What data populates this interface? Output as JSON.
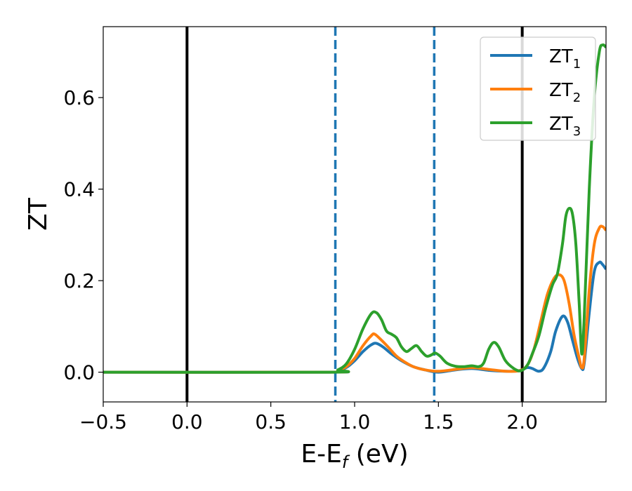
{
  "chart_data": {
    "type": "line",
    "xlabel": {
      "main": "E-E",
      "sub": "f",
      "unit": " (eV)"
    },
    "ylabel": "ZT",
    "xlim": [
      -0.5,
      2.5
    ],
    "ylim": [
      -0.065,
      0.755
    ],
    "x_ticks": [
      -0.5,
      0.0,
      0.5,
      1.0,
      1.5,
      2.0
    ],
    "x_tick_labels": [
      "−0.5",
      "0.0",
      "0.5",
      "1.0",
      "1.5",
      "2.0"
    ],
    "y_ticks": [
      0.0,
      0.2,
      0.4,
      0.6
    ],
    "y_tick_labels": [
      "0.0",
      "0.2",
      "0.4",
      "0.6"
    ],
    "grid": false,
    "legend_position": "top-right",
    "vertical_lines": [
      {
        "x": 0.0,
        "style": "solid",
        "color": "#000000"
      },
      {
        "x": 2.0,
        "style": "solid",
        "color": "#000000"
      },
      {
        "x": 0.885,
        "style": "dashed",
        "color": "#1f77b4"
      },
      {
        "x": 1.475,
        "style": "dashed",
        "color": "#1f77b4"
      }
    ],
    "series": [
      {
        "name": "ZT",
        "sub": "1",
        "color": "#1f77b4",
        "points": [
          [
            -0.5,
            0
          ],
          [
            0.85,
            0
          ],
          [
            0.9,
            0.003
          ],
          [
            0.95,
            0.01
          ],
          [
            1.0,
            0.025
          ],
          [
            1.05,
            0.045
          ],
          [
            1.1,
            0.06
          ],
          [
            1.13,
            0.063
          ],
          [
            1.17,
            0.055
          ],
          [
            1.22,
            0.04
          ],
          [
            1.28,
            0.025
          ],
          [
            1.35,
            0.012
          ],
          [
            1.42,
            0.005
          ],
          [
            1.5,
            0
          ],
          [
            1.6,
            0.005
          ],
          [
            1.7,
            0.008
          ],
          [
            1.8,
            0.004
          ],
          [
            1.9,
            0.002
          ],
          [
            1.98,
            0.003
          ],
          [
            2.03,
            0.01
          ],
          [
            2.06,
            0.008
          ],
          [
            2.1,
            0.002
          ],
          [
            2.13,
            0.01
          ],
          [
            2.17,
            0.045
          ],
          [
            2.2,
            0.09
          ],
          [
            2.24,
            0.122
          ],
          [
            2.27,
            0.11
          ],
          [
            2.3,
            0.07
          ],
          [
            2.33,
            0.03
          ],
          [
            2.355,
            0.008
          ],
          [
            2.37,
            0.02
          ],
          [
            2.4,
            0.13
          ],
          [
            2.43,
            0.22
          ],
          [
            2.46,
            0.24
          ],
          [
            2.48,
            0.235
          ],
          [
            2.5,
            0.225
          ]
        ]
      },
      {
        "name": "ZT",
        "sub": "2",
        "color": "#ff7f0e",
        "points": [
          [
            -0.5,
            0
          ],
          [
            0.85,
            0
          ],
          [
            0.9,
            0.004
          ],
          [
            0.95,
            0.012
          ],
          [
            1.0,
            0.03
          ],
          [
            1.05,
            0.058
          ],
          [
            1.1,
            0.08
          ],
          [
            1.12,
            0.083
          ],
          [
            1.16,
            0.07
          ],
          [
            1.2,
            0.055
          ],
          [
            1.25,
            0.035
          ],
          [
            1.3,
            0.022
          ],
          [
            1.35,
            0.012
          ],
          [
            1.42,
            0.005
          ],
          [
            1.5,
            0.002
          ],
          [
            1.6,
            0.006
          ],
          [
            1.7,
            0.01
          ],
          [
            1.8,
            0.006
          ],
          [
            1.9,
            0.002
          ],
          [
            1.98,
            0.003
          ],
          [
            2.03,
            0.015
          ],
          [
            2.07,
            0.05
          ],
          [
            2.11,
            0.11
          ],
          [
            2.15,
            0.17
          ],
          [
            2.19,
            0.205
          ],
          [
            2.22,
            0.213
          ],
          [
            2.25,
            0.2
          ],
          [
            2.28,
            0.15
          ],
          [
            2.31,
            0.08
          ],
          [
            2.34,
            0.03
          ],
          [
            2.355,
            0.01
          ],
          [
            2.37,
            0.03
          ],
          [
            2.4,
            0.18
          ],
          [
            2.43,
            0.28
          ],
          [
            2.46,
            0.315
          ],
          [
            2.48,
            0.318
          ],
          [
            2.5,
            0.31
          ]
        ]
      },
      {
        "name": "ZT",
        "sub": "3",
        "color": "#2ca02c",
        "points": [
          [
            -0.5,
            0
          ],
          [
            0.85,
            0
          ],
          [
            0.9,
            0.005
          ],
          [
            0.95,
            0.018
          ],
          [
            1.0,
            0.05
          ],
          [
            1.05,
            0.095
          ],
          [
            1.1,
            0.128
          ],
          [
            1.13,
            0.13
          ],
          [
            1.16,
            0.115
          ],
          [
            1.19,
            0.09
          ],
          [
            1.22,
            0.083
          ],
          [
            1.25,
            0.075
          ],
          [
            1.28,
            0.055
          ],
          [
            1.31,
            0.045
          ],
          [
            1.34,
            0.052
          ],
          [
            1.37,
            0.058
          ],
          [
            1.4,
            0.045
          ],
          [
            1.43,
            0.035
          ],
          [
            1.46,
            0.038
          ],
          [
            1.48,
            0.042
          ],
          [
            1.51,
            0.035
          ],
          [
            1.55,
            0.02
          ],
          [
            1.6,
            0.013
          ],
          [
            1.65,
            0.012
          ],
          [
            1.7,
            0.014
          ],
          [
            1.74,
            0.012
          ],
          [
            1.77,
            0.02
          ],
          [
            1.8,
            0.05
          ],
          [
            1.83,
            0.065
          ],
          [
            1.86,
            0.055
          ],
          [
            1.9,
            0.025
          ],
          [
            1.95,
            0.008
          ],
          [
            1.99,
            0.003
          ],
          [
            2.03,
            0.015
          ],
          [
            2.06,
            0.04
          ],
          [
            2.1,
            0.08
          ],
          [
            2.14,
            0.14
          ],
          [
            2.18,
            0.19
          ],
          [
            2.21,
            0.215
          ],
          [
            2.24,
            0.28
          ],
          [
            2.26,
            0.34
          ],
          [
            2.28,
            0.358
          ],
          [
            2.3,
            0.345
          ],
          [
            2.32,
            0.28
          ],
          [
            2.34,
            0.15
          ],
          [
            2.355,
            0.04
          ],
          [
            2.37,
            0.12
          ],
          [
            2.4,
            0.4
          ],
          [
            2.43,
            0.6
          ],
          [
            2.46,
            0.7
          ],
          [
            2.48,
            0.715
          ],
          [
            2.5,
            0.71
          ]
        ]
      }
    ]
  }
}
